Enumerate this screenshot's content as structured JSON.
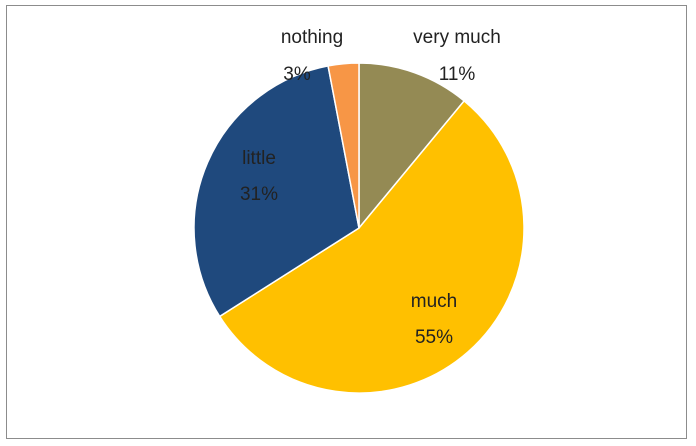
{
  "chart_data": {
    "type": "pie",
    "title": "",
    "start_angle_deg": 0,
    "direction": "clockwise",
    "slices": [
      {
        "label": "very much",
        "value": 11,
        "value_label": "11%",
        "color": "#948A54"
      },
      {
        "label": "much",
        "value": 55,
        "value_label": "55%",
        "color": "#FFC000"
      },
      {
        "label": "little",
        "value": 31,
        "value_label": "31%",
        "color": "#1F497D"
      },
      {
        "label": "nothing",
        "value": 3,
        "value_label": "3%",
        "color": "#F79646"
      }
    ]
  }
}
